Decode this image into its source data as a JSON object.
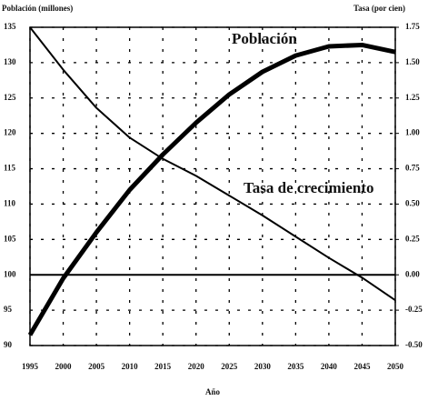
{
  "chart_data": {
    "type": "line",
    "y_label": "Población (millones)",
    "y2_label": "Tasa (por cien)",
    "x_label": "Año",
    "x": [
      1995,
      2000,
      2005,
      2010,
      2015,
      2020,
      2025,
      2030,
      2035,
      2040,
      2045,
      2050
    ],
    "series": [
      {
        "name": "Población",
        "color": "#000000",
        "values": [
          91.5,
          99.5,
          106,
          112,
          117,
          121.5,
          125.5,
          128.7,
          131,
          132.3,
          132.5,
          131.5
        ]
      },
      {
        "name": "Tasa de crecimiento",
        "color": "#000000",
        "axis": "y2",
        "values": [
          1.75,
          1.45,
          1.18,
          0.97,
          0.82,
          0.7,
          0.56,
          0.42,
          0.27,
          0.12,
          -0.02,
          -0.18
        ]
      }
    ],
    "xlim": [
      1995,
      2050
    ],
    "xticks": [
      1995,
      2000,
      2005,
      2010,
      2015,
      2020,
      2025,
      2030,
      2035,
      2040,
      2045,
      2050
    ],
    "ylim": [
      90,
      135
    ],
    "yticks": [
      90,
      95,
      100,
      105,
      110,
      115,
      120,
      125,
      130,
      135
    ],
    "y2lim": [
      -0.5,
      1.75
    ],
    "y2ticks": [
      {
        "value": -0.5,
        "label": "-0.50"
      },
      {
        "value": -0.25,
        "label": "-0.25"
      },
      {
        "value": 0,
        "label": "0.00"
      },
      {
        "value": 0.25,
        "label": "0.25"
      },
      {
        "value": 0.5,
        "label": "0.50"
      },
      {
        "value": 0.75,
        "label": "0.75"
      },
      {
        "value": 1,
        "label": "1.00"
      },
      {
        "value": 1.25,
        "label": "1.25"
      },
      {
        "value": 1.5,
        "label": "1.50"
      },
      {
        "value": 1.75,
        "label": "1.75"
      }
    ],
    "hline": 100,
    "grid": true
  }
}
